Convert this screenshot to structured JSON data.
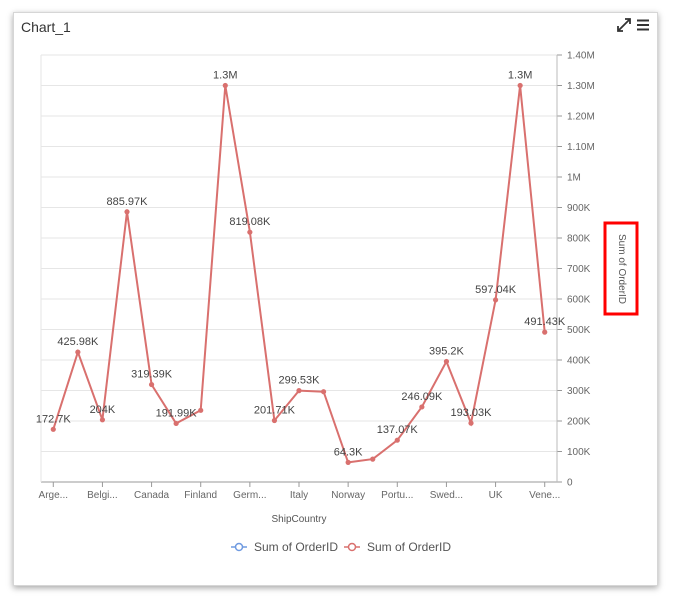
{
  "widget": {
    "title": "Chart_1"
  },
  "icons": {
    "expand": "expand-icon",
    "menu": "hamburger-menu-icon"
  },
  "chart_data": {
    "type": "line",
    "xlabel": "ShipCountry",
    "ylabel": "Sum of OrderID",
    "ylim": [
      0,
      1400000
    ],
    "yticks": [
      "0",
      "100K",
      "200K",
      "300K",
      "400K",
      "500K",
      "600K",
      "700K",
      "800K",
      "900K",
      "1M",
      "1.10M",
      "1.20M",
      "1.30M",
      "1.40M"
    ],
    "x_tick_labels": [
      "Arge...",
      "Belgi...",
      "Canada",
      "Finland",
      "Germ...",
      "Italy",
      "Norway",
      "Portu...",
      "Swed...",
      "UK",
      "Vene..."
    ],
    "x_tick_indices": [
      0,
      2,
      4,
      6,
      8,
      10,
      12,
      14,
      16,
      18,
      20
    ],
    "grid": true,
    "legend_position": "bottom",
    "series": [
      {
        "name": "Sum of OrderID",
        "color": "#6f9ae0",
        "values": [
          172700,
          425980,
          204000,
          885970,
          319390,
          191990,
          235000,
          1300000,
          819080,
          201710,
          299530,
          296000,
          64300,
          75000,
          137070,
          246090,
          395200,
          193030,
          597040,
          1300000,
          491430
        ]
      },
      {
        "name": "Sum of OrderID",
        "color": "#d9706e",
        "values": [
          172700,
          425980,
          204000,
          885970,
          319390,
          191990,
          235000,
          1300000,
          819080,
          201710,
          299530,
          296000,
          64300,
          75000,
          137070,
          246090,
          395200,
          193030,
          597040,
          1300000,
          491430
        ]
      }
    ],
    "data_labels": [
      {
        "index": 0,
        "text": "172.7K"
      },
      {
        "index": 1,
        "text": "425.98K"
      },
      {
        "index": 2,
        "text": "204K"
      },
      {
        "index": 3,
        "text": "885.97K"
      },
      {
        "index": 4,
        "text": "319.39K"
      },
      {
        "index": 5,
        "text": "191.99K"
      },
      {
        "index": 7,
        "text": "1.3M"
      },
      {
        "index": 8,
        "text": "819.08K"
      },
      {
        "index": 9,
        "text": "201.71K"
      },
      {
        "index": 10,
        "text": "299.53K"
      },
      {
        "index": 12,
        "text": "64.3K"
      },
      {
        "index": 14,
        "text": "137.07K"
      },
      {
        "index": 15,
        "text": "246.09K"
      },
      {
        "index": 16,
        "text": "395.2K"
      },
      {
        "index": 17,
        "text": "193.03K"
      },
      {
        "index": 18,
        "text": "597.04K"
      },
      {
        "index": 19,
        "text": "1.3M"
      },
      {
        "index": 20,
        "text": "491.43K"
      }
    ],
    "highlight": {
      "target": "ylabel",
      "color": "#ff0000"
    }
  }
}
